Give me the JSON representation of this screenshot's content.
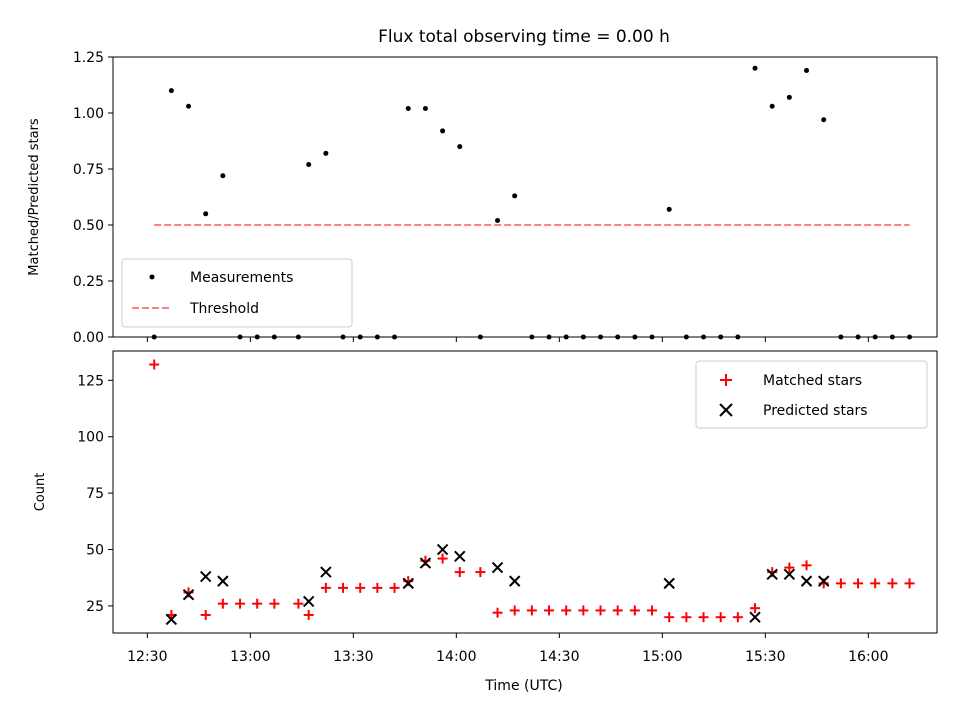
{
  "chart_data": [
    {
      "type": "scatter",
      "title": "Flux total observing time = 0.00 h",
      "xlabel": "",
      "ylabel": "Matched/Predicted stars",
      "ylim": [
        0,
        1.25
      ],
      "xlim": [
        "12:20",
        "16:20"
      ],
      "yticks": [
        "0.00",
        "0.25",
        "0.50",
        "0.75",
        "1.00",
        "1.25"
      ],
      "legend": {
        "placement": "lower-left",
        "entries": [
          "Measurements",
          "Threshold"
        ]
      },
      "series": [
        {
          "name": "Measurements",
          "marker": "dot",
          "color": "#000000",
          "points": [
            [
              "12:32",
              0.0
            ],
            [
              "12:37",
              1.1
            ],
            [
              "12:42",
              1.03
            ],
            [
              "12:47",
              0.55
            ],
            [
              "12:52",
              0.72
            ],
            [
              "12:57",
              0.0
            ],
            [
              "13:02",
              0.0
            ],
            [
              "13:07",
              0.0
            ],
            [
              "13:14",
              0.0
            ],
            [
              "13:17",
              0.77
            ],
            [
              "13:22",
              0.82
            ],
            [
              "13:27",
              0.0
            ],
            [
              "13:32",
              0.0
            ],
            [
              "13:37",
              0.0
            ],
            [
              "13:42",
              0.0
            ],
            [
              "13:46",
              1.02
            ],
            [
              "13:51",
              1.02
            ],
            [
              "13:56",
              0.92
            ],
            [
              "14:01",
              0.85
            ],
            [
              "14:07",
              0.0
            ],
            [
              "14:12",
              0.52
            ],
            [
              "14:17",
              0.63
            ],
            [
              "14:22",
              0.0
            ],
            [
              "14:27",
              0.0
            ],
            [
              "14:32",
              0.0
            ],
            [
              "14:37",
              0.0
            ],
            [
              "14:42",
              0.0
            ],
            [
              "14:47",
              0.0
            ],
            [
              "14:52",
              0.0
            ],
            [
              "14:57",
              0.0
            ],
            [
              "15:02",
              0.57
            ],
            [
              "15:07",
              0.0
            ],
            [
              "15:12",
              0.0
            ],
            [
              "15:17",
              0.0
            ],
            [
              "15:22",
              0.0
            ],
            [
              "15:27",
              1.2
            ],
            [
              "15:32",
              1.03
            ],
            [
              "15:37",
              1.07
            ],
            [
              "15:42",
              1.19
            ],
            [
              "15:47",
              0.97
            ],
            [
              "15:52",
              0.0
            ],
            [
              "15:57",
              0.0
            ],
            [
              "16:02",
              0.0
            ],
            [
              "16:07",
              0.0
            ],
            [
              "16:12",
              0.0
            ]
          ]
        },
        {
          "name": "Threshold",
          "style": "dashed",
          "color": "#ff8080",
          "points": [
            [
              "12:32",
              0.5
            ],
            [
              "16:12",
              0.5
            ]
          ]
        }
      ]
    },
    {
      "type": "scatter",
      "title": "",
      "xlabel": "Time (UTC)",
      "ylabel": "Count",
      "ylim": [
        13,
        138
      ],
      "xlim": [
        "12:20",
        "16:20"
      ],
      "yticks": [
        "25",
        "50",
        "75",
        "100",
        "125"
      ],
      "xticks": [
        "12:30",
        "13:00",
        "13:30",
        "14:00",
        "14:30",
        "15:00",
        "15:30",
        "16:00"
      ],
      "legend": {
        "placement": "upper-right",
        "entries": [
          "Matched stars",
          "Predicted stars"
        ]
      },
      "series": [
        {
          "name": "Matched stars",
          "marker": "plus",
          "color": "#ff0000",
          "points": [
            [
              "12:32",
              132
            ],
            [
              "12:37",
              21
            ],
            [
              "12:42",
              31
            ],
            [
              "12:47",
              21
            ],
            [
              "12:52",
              26
            ],
            [
              "12:57",
              26
            ],
            [
              "13:02",
              26
            ],
            [
              "13:07",
              26
            ],
            [
              "13:14",
              26
            ],
            [
              "13:17",
              21
            ],
            [
              "13:22",
              33
            ],
            [
              "13:27",
              33
            ],
            [
              "13:32",
              33
            ],
            [
              "13:37",
              33
            ],
            [
              "13:42",
              33
            ],
            [
              "13:46",
              36
            ],
            [
              "13:51",
              45
            ],
            [
              "13:56",
              46
            ],
            [
              "14:01",
              40
            ],
            [
              "14:07",
              40
            ],
            [
              "14:12",
              22
            ],
            [
              "14:17",
              23
            ],
            [
              "14:22",
              23
            ],
            [
              "14:27",
              23
            ],
            [
              "14:32",
              23
            ],
            [
              "14:37",
              23
            ],
            [
              "14:42",
              23
            ],
            [
              "14:47",
              23
            ],
            [
              "14:52",
              23
            ],
            [
              "14:57",
              23
            ],
            [
              "15:02",
              20
            ],
            [
              "15:07",
              20
            ],
            [
              "15:12",
              20
            ],
            [
              "15:17",
              20
            ],
            [
              "15:22",
              20
            ],
            [
              "15:27",
              24
            ],
            [
              "15:32",
              40
            ],
            [
              "15:37",
              42
            ],
            [
              "15:42",
              43
            ],
            [
              "15:47",
              35
            ],
            [
              "15:52",
              35
            ],
            [
              "15:57",
              35
            ],
            [
              "16:02",
              35
            ],
            [
              "16:07",
              35
            ],
            [
              "16:12",
              35
            ]
          ]
        },
        {
          "name": "Predicted stars",
          "marker": "x",
          "color": "#000000",
          "points": [
            [
              "12:37",
              19
            ],
            [
              "12:42",
              30
            ],
            [
              "12:47",
              38
            ],
            [
              "12:52",
              36
            ],
            [
              "13:17",
              27
            ],
            [
              "13:22",
              40
            ],
            [
              "13:46",
              35
            ],
            [
              "13:51",
              44
            ],
            [
              "13:56",
              50
            ],
            [
              "14:01",
              47
            ],
            [
              "14:12",
              42
            ],
            [
              "14:17",
              36
            ],
            [
              "15:02",
              35
            ],
            [
              "15:27",
              20
            ],
            [
              "15:32",
              39
            ],
            [
              "15:37",
              39
            ],
            [
              "15:42",
              36
            ],
            [
              "15:47",
              36
            ]
          ]
        }
      ]
    }
  ]
}
